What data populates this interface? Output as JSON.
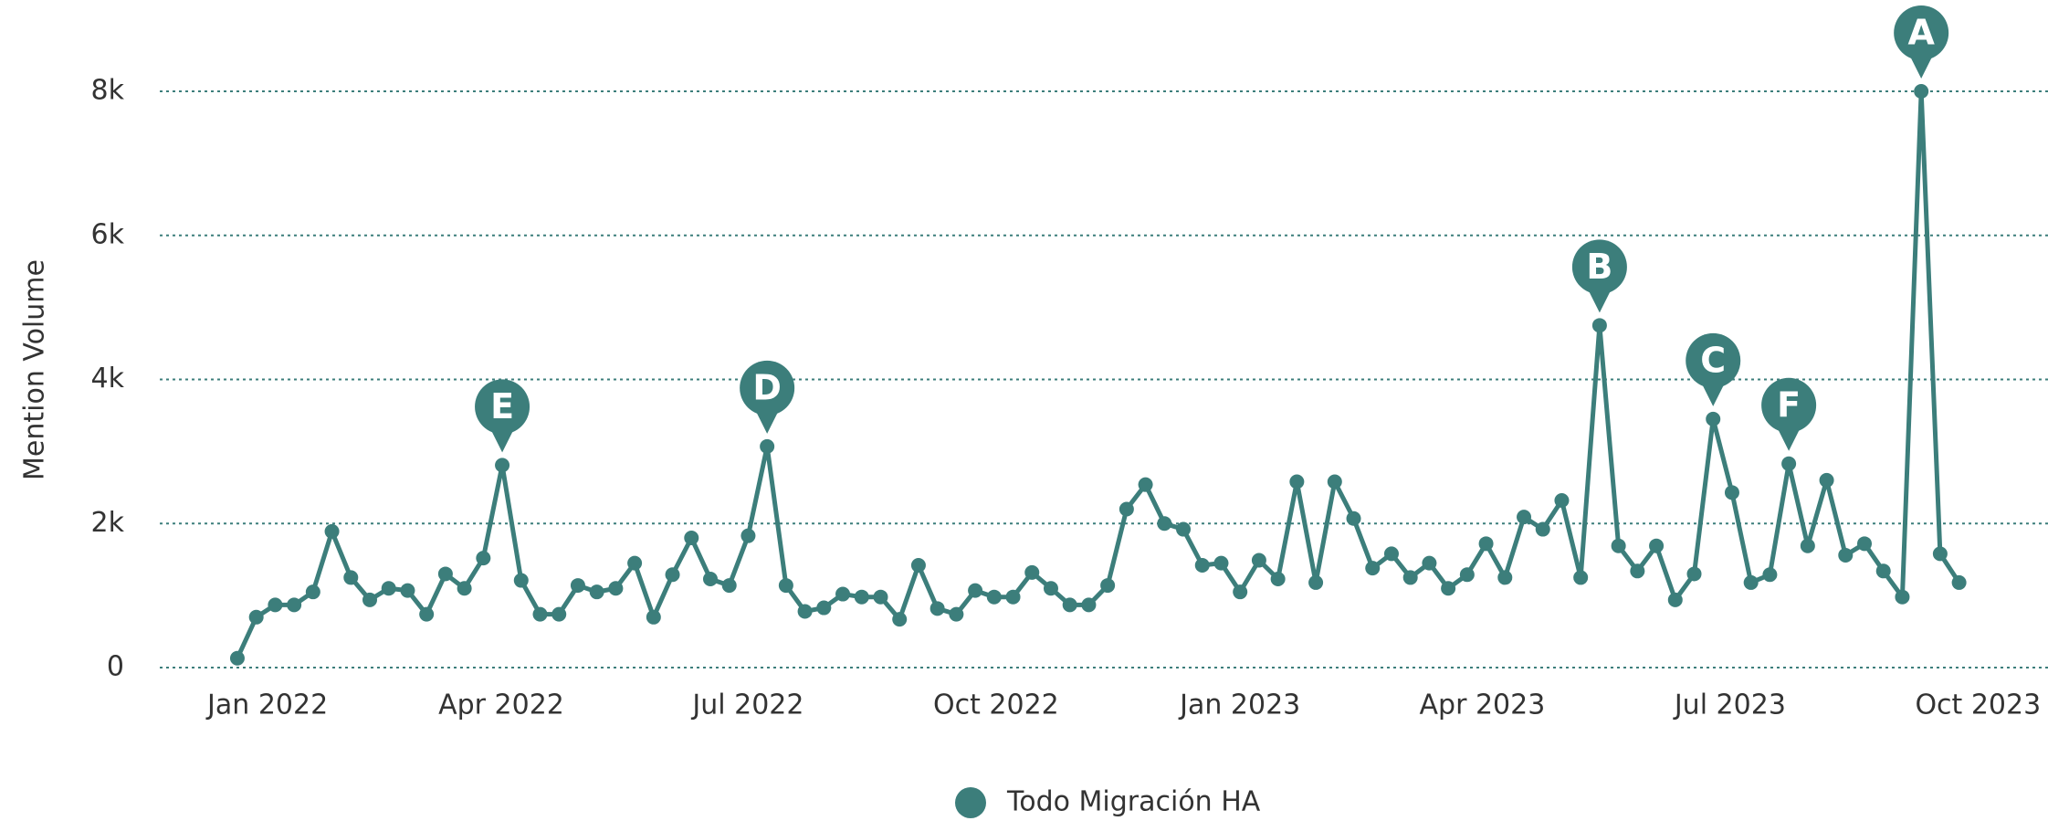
{
  "chart_data": {
    "type": "line",
    "y_label": "Mention Volume",
    "series": [
      {
        "name": "Todo Migración HA",
        "color": "#3c7e7b",
        "values": [
          130,
          700,
          870,
          870,
          1050,
          1890,
          1250,
          940,
          1100,
          1070,
          740,
          1300,
          1100,
          1520,
          2810,
          1210,
          740,
          740,
          1140,
          1050,
          1100,
          1450,
          700,
          1290,
          1800,
          1230,
          1140,
          1830,
          3070,
          1140,
          780,
          830,
          1020,
          980,
          980,
          670,
          1420,
          820,
          740,
          1070,
          980,
          980,
          1320,
          1100,
          870,
          870,
          1140,
          2200,
          2540,
          2000,
          1920,
          1420,
          1450,
          1050,
          1490,
          1230,
          2580,
          1180,
          2580,
          2070,
          1380,
          1580,
          1250,
          1450,
          1100,
          1290,
          1720,
          1250,
          2090,
          1920,
          2320,
          1250,
          4750,
          1690,
          1340,
          1690,
          940,
          1300,
          3450,
          2430,
          1180,
          1290,
          2830,
          1690,
          2600,
          1560,
          1720,
          1340,
          980,
          8000,
          1580,
          1180
        ]
      }
    ],
    "xlim": [
      -4.1,
      95.7
    ],
    "xticks": [
      {
        "value": 1.6,
        "label": "Jan 2022"
      },
      {
        "value": 13.95,
        "label": "Apr 2022"
      },
      {
        "value": 27.0,
        "label": "Jul 2022"
      },
      {
        "value": 40.1,
        "label": "Oct 2022"
      },
      {
        "value": 53.0,
        "label": "Jan 2023"
      },
      {
        "value": 65.8,
        "label": "Apr 2023"
      },
      {
        "value": 78.9,
        "label": "Jul 2023"
      },
      {
        "value": 92.0,
        "label": "Oct 2023"
      }
    ],
    "ylim": [
      0,
      8000
    ],
    "yticks": [
      0,
      {
        "value": 2000,
        "label": "2k"
      },
      {
        "value": 4000,
        "label": "4k"
      },
      {
        "value": 6000,
        "label": "6k"
      },
      {
        "value": 8000,
        "label": "8k"
      }
    ],
    "grid": true,
    "legend": "bottom",
    "annotations": [
      {
        "text": "E",
        "x": 14
      },
      {
        "text": "D",
        "x": 28
      },
      {
        "text": "B",
        "x": 72
      },
      {
        "text": "C",
        "x": 78
      },
      {
        "text": "F",
        "x": 82
      },
      {
        "text": "A",
        "x": 89
      }
    ]
  }
}
